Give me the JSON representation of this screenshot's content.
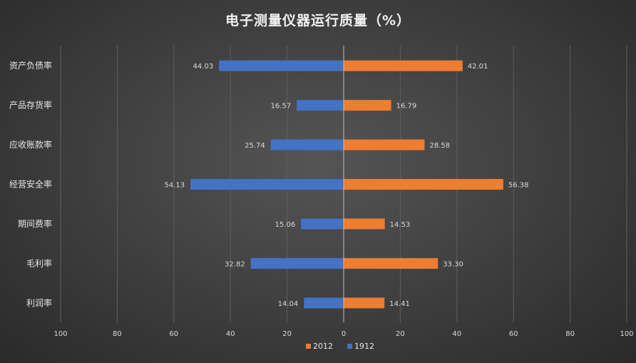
{
  "chart_data": {
    "type": "bar",
    "orientation": "horizontal-butterfly",
    "title": "电子测量仪器运行质量（%）",
    "categories": [
      "资产负债率",
      "产品存货率",
      "应收账款率",
      "经营安全率",
      "期间费率",
      "毛利率",
      "利润率"
    ],
    "series": [
      {
        "name": "2012",
        "values": [
          42.01,
          16.79,
          28.58,
          56.38,
          14.53,
          33.3,
          14.41
        ],
        "direction": "right",
        "color": "#ed7d31"
      },
      {
        "name": "1912",
        "values": [
          44.03,
          16.57,
          25.74,
          54.13,
          15.06,
          32.82,
          14.04
        ],
        "direction": "left",
        "color": "#4472c4"
      }
    ],
    "data_labels": {
      "2012": [
        "42.01",
        "16.79",
        "28.58",
        "56.38",
        "14.53",
        "33.30",
        "14.41"
      ],
      "1912": [
        "44.03",
        "16.57",
        "25.74",
        "54.13",
        "15.06",
        "32.82",
        "14.04"
      ]
    },
    "xlim": [
      -100,
      100
    ],
    "x_ticks": [
      -100,
      -80,
      -60,
      -40,
      -20,
      0,
      20,
      40,
      60,
      80,
      100
    ],
    "x_tick_labels": [
      "100",
      "80",
      "60",
      "40",
      "20",
      "0",
      "20",
      "40",
      "60",
      "80",
      "100"
    ],
    "grid": "vertical",
    "legend": {
      "position": "bottom",
      "entries": [
        "2012",
        "1912"
      ]
    }
  }
}
